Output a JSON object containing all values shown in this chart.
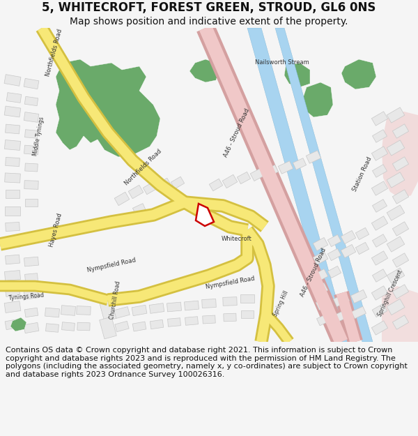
{
  "title": "5, WHITECROFT, FOREST GREEN, STROUD, GL6 0NS",
  "subtitle": "Map shows position and indicative extent of the property.",
  "footer": "Contains OS data © Crown copyright and database right 2021. This information is subject to Crown copyright and database rights 2023 and is reproduced with the permission of HM Land Registry. The polygons (including the associated geometry, namely x, y co-ordinates) are subject to Crown copyright and database rights 2023 Ordnance Survey 100026316.",
  "bg_color": "#f5f5f5",
  "map_bg": "#ffffff",
  "road_yellow": "#f7e877",
  "road_yellow_border": "#d4c040",
  "road_pink": "#f0c8c8",
  "road_pink_border": "#d4a0a0",
  "water_blue": "#a8d4f0",
  "green_area": "#6aaa6a",
  "building_color": "#e8e8e8",
  "building_edge": "#c8c8c8",
  "highlight_red": "#cc0000",
  "text_color": "#333333",
  "title_fontsize": 12,
  "subtitle_fontsize": 10,
  "footer_fontsize": 8
}
